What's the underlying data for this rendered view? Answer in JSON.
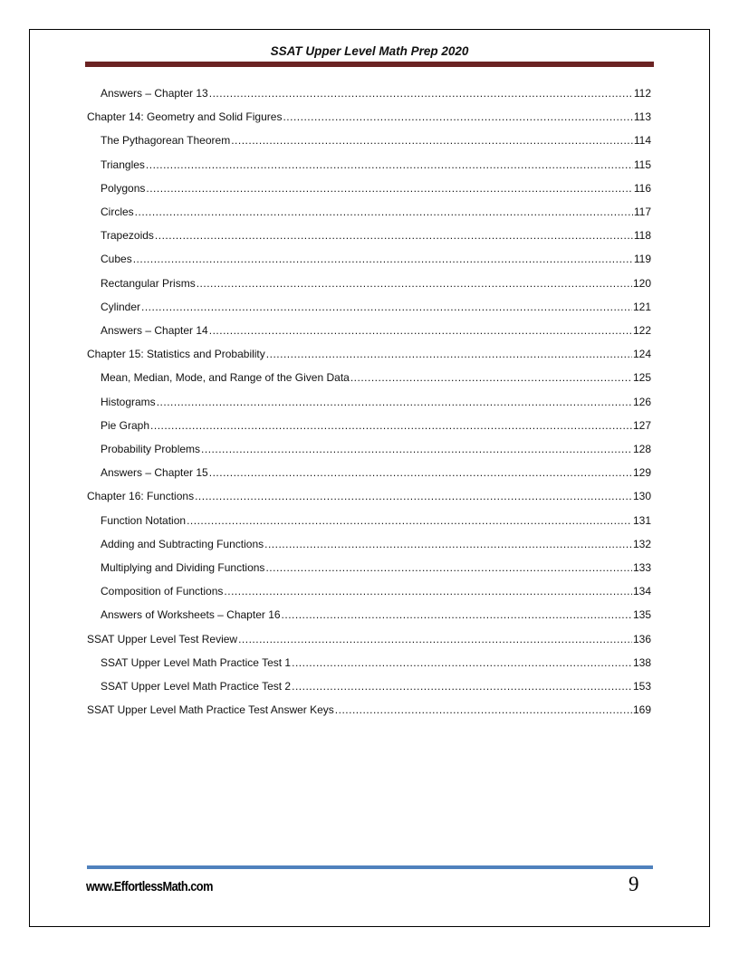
{
  "header": {
    "title": "SSAT Upper Level Math Prep 2020"
  },
  "toc": [
    {
      "title": "Answers – Chapter 13",
      "page": "112",
      "level": 2
    },
    {
      "title": "Chapter 14:  Geometry and Solid Figures",
      "page": "113",
      "level": 1
    },
    {
      "title": "The Pythagorean Theorem ",
      "page": "114",
      "level": 2
    },
    {
      "title": "Triangles",
      "page": "115",
      "level": 2
    },
    {
      "title": "Polygons",
      "page": "116",
      "level": 2
    },
    {
      "title": "Circles",
      "page": "117",
      "level": 2
    },
    {
      "title": "Trapezoids",
      "page": "118",
      "level": 2
    },
    {
      "title": "Cubes",
      "page": "119",
      "level": 2
    },
    {
      "title": "Rectangular Prisms",
      "page": "120",
      "level": 2
    },
    {
      "title": "Cylinder ",
      "page": "121",
      "level": 2
    },
    {
      "title": "Answers – Chapter 14 ",
      "page": "122",
      "level": 2
    },
    {
      "title": "Chapter 15:  Statistics and Probability",
      "page": "124",
      "level": 1
    },
    {
      "title": "Mean, Median, Mode, and Range of the Given Data ",
      "page": "125",
      "level": 2
    },
    {
      "title": "Histograms ",
      "page": "126",
      "level": 2
    },
    {
      "title": "Pie Graph",
      "page": "127",
      "level": 2
    },
    {
      "title": "Probability Problems",
      "page": "128",
      "level": 2
    },
    {
      "title": "Answers – Chapter 15 ",
      "page": "129",
      "level": 2
    },
    {
      "title": "Chapter 16: Functions",
      "page": "130",
      "level": 1
    },
    {
      "title": "Function Notation ",
      "page": "131",
      "level": 2
    },
    {
      "title": "Adding and Subtracting Functions ",
      "page": "132",
      "level": 2
    },
    {
      "title": "Multiplying and Dividing Functions",
      "page": "133",
      "level": 2
    },
    {
      "title": "Composition of Functions ",
      "page": "134",
      "level": 2
    },
    {
      "title": "Answers of Worksheets – Chapter 16",
      "page": "135",
      "level": 2
    },
    {
      "title": "SSAT Upper Level Test Review ",
      "page": "136",
      "level": 1
    },
    {
      "title": "SSAT Upper Level Math Practice Test 1 ",
      "page": "138",
      "level": 2
    },
    {
      "title": "SSAT Upper Level Math Practice Test 2 ",
      "page": "153",
      "level": 2
    },
    {
      "title": "SSAT Upper Level Math Practice Test Answer Keys",
      "page": "169",
      "level": 1
    }
  ],
  "footer": {
    "url": "www.EffortlessMath.com",
    "page_number": "9"
  },
  "colors": {
    "header_bar": "#6b2323",
    "footer_bar": "#4f81bd"
  }
}
